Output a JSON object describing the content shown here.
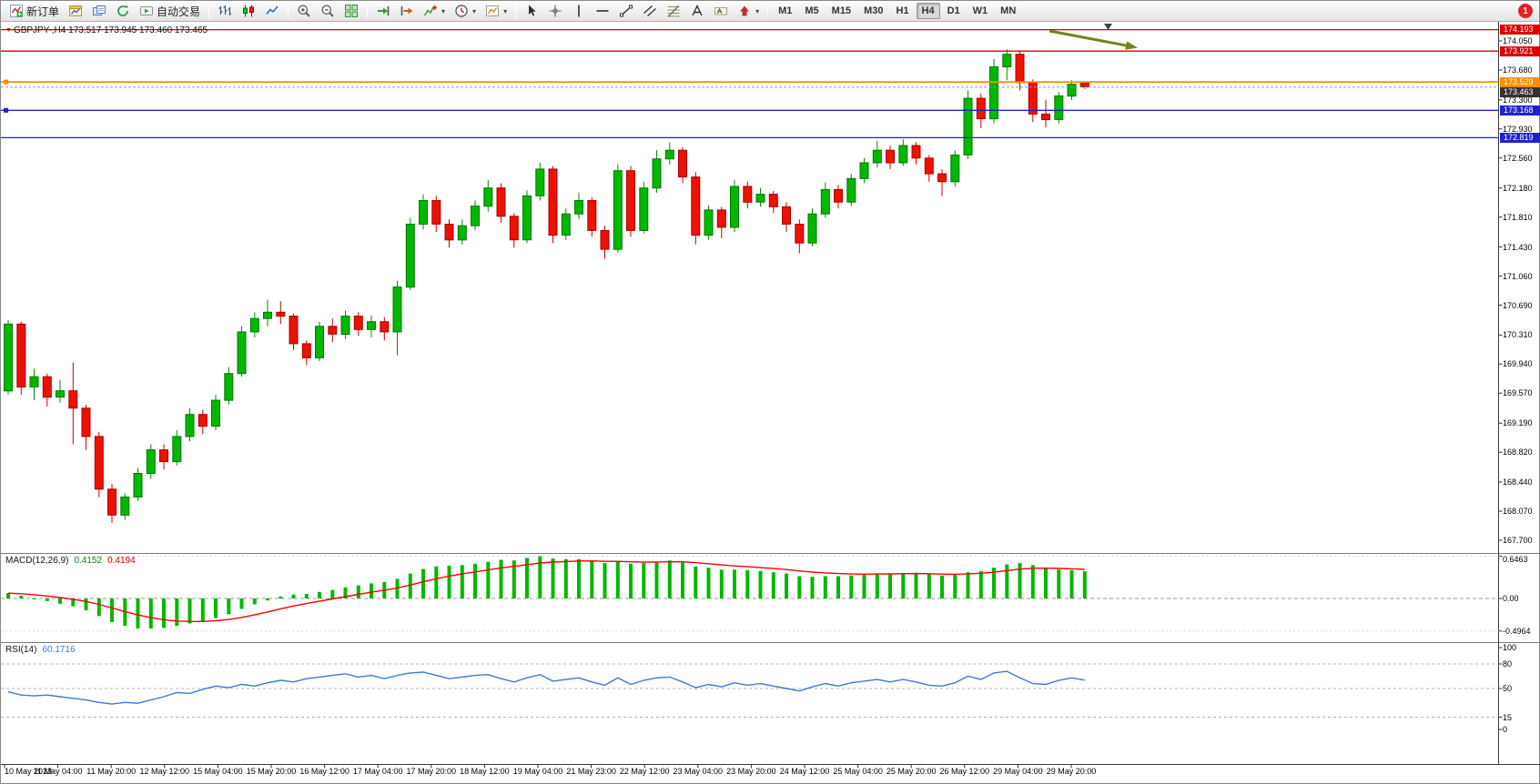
{
  "window": {
    "badge_count": "1"
  },
  "toolbar": {
    "caret_glyph": "▾",
    "active_timeframe": "H4",
    "items": [
      {
        "kind": "labelbtn",
        "name": "new-order-button",
        "icon": "new-order-icon",
        "label": "新订单"
      },
      {
        "kind": "icon",
        "name": "new-chart-button",
        "icon": "chart-window-icon"
      },
      {
        "kind": "icon",
        "name": "profiles-button",
        "icon": "profiles-icon"
      },
      {
        "kind": "icon",
        "name": "refresh-button",
        "icon": "refresh-icon"
      },
      {
        "kind": "labelbtn",
        "name": "auto-trading-button",
        "icon": "auto-trading-icon",
        "label": "自动交易"
      },
      {
        "kind": "sep"
      },
      {
        "kind": "icon",
        "name": "bar-chart-button",
        "icon": "bar-chart-icon"
      },
      {
        "kind": "icon",
        "name": "candlestick-chart-button",
        "icon": "candlestick-icon"
      },
      {
        "kind": "icon",
        "name": "line-chart-button",
        "icon": "line-chart-icon"
      },
      {
        "kind": "sep"
      },
      {
        "kind": "icon",
        "name": "zoom-in-button",
        "icon": "zoom-in-icon"
      },
      {
        "kind": "icon",
        "name": "zoom-out-button",
        "icon": "zoom-out-icon"
      },
      {
        "kind": "icon",
        "name": "tile-windows-button",
        "icon": "tile-windows-icon"
      },
      {
        "kind": "sep"
      },
      {
        "kind": "icon",
        "name": "auto-scroll-button",
        "icon": "auto-scroll-icon"
      },
      {
        "kind": "icon",
        "name": "chart-shift-button",
        "icon": "chart-shift-icon"
      },
      {
        "kind": "dropdown",
        "name": "indicators-button",
        "icon": "indicators-icon"
      },
      {
        "kind": "dropdown",
        "name": "periods-button",
        "icon": "periods-icon"
      },
      {
        "kind": "dropdown",
        "name": "templates-button",
        "icon": "templates-icon"
      },
      {
        "kind": "sep"
      },
      {
        "kind": "icon",
        "name": "cursor-button",
        "icon": "cursor-icon"
      },
      {
        "kind": "icon",
        "name": "crosshair-button",
        "icon": "crosshair-icon"
      },
      {
        "kind": "icon",
        "name": "vertical-line-button",
        "icon": "vertical-line-icon"
      },
      {
        "kind": "icon",
        "name": "horizontal-line-button",
        "icon": "horizontal-line-icon"
      },
      {
        "kind": "icon",
        "name": "trendline-button",
        "icon": "trendline-icon"
      },
      {
        "kind": "icon",
        "name": "equidistant-channel-button",
        "icon": "channel-icon"
      },
      {
        "kind": "icon",
        "name": "fibonacci-button",
        "icon": "fibonacci-icon"
      },
      {
        "kind": "icon",
        "name": "text-button",
        "icon": "text-icon"
      },
      {
        "kind": "icon",
        "name": "text-label-button",
        "icon": "text-label-icon"
      },
      {
        "kind": "dropdown",
        "name": "arrows-button",
        "icon": "arrows-icon"
      },
      {
        "kind": "sep"
      },
      {
        "kind": "tf",
        "label": "M1"
      },
      {
        "kind": "tf",
        "label": "M5"
      },
      {
        "kind": "tf",
        "label": "M15"
      },
      {
        "kind": "tf",
        "label": "M30"
      },
      {
        "kind": "tf",
        "label": "H1"
      },
      {
        "kind": "tf",
        "label": "H4"
      },
      {
        "kind": "tf",
        "label": "D1"
      },
      {
        "kind": "tf",
        "label": "W1"
      },
      {
        "kind": "tf",
        "label": "MN"
      }
    ]
  },
  "chart_data": {
    "type": "candlestick",
    "symbol": "GBPJPY-",
    "timeframe": "H4",
    "title": "GBPJPY-,H4",
    "direction_marker": "▼",
    "ohlc_display": "173.517 173.945 173.460 173.465",
    "up_color": "#00b800",
    "down_color": "#ee1100",
    "y_range": [
      167.544,
      174.293
    ],
    "y_axis_labels": [
      "174.050",
      "173.680",
      "173.300",
      "172.930",
      "172.560",
      "172.180",
      "171.810",
      "171.430",
      "171.060",
      "170.690",
      "170.310",
      "169.940",
      "169.570",
      "169.190",
      "168.820",
      "168.440",
      "168.070",
      "167.700"
    ],
    "x_labels": [
      "10 May 2023",
      "11 May 04:00",
      "11 May 20:00",
      "12 May 12:00",
      "15 May 04:00",
      "15 May 20:00",
      "16 May 12:00",
      "17 May 04:00",
      "17 May 20:00",
      "18 May 12:00",
      "19 May 04:00",
      "21 May 23:00",
      "22 May 12:00",
      "23 May 04:00",
      "23 May 20:00",
      "24 May 12:00",
      "25 May 04:00",
      "25 May 20:00",
      "26 May 12:00",
      "29 May 04:00",
      "29 May 20:00"
    ],
    "horizontal_lines": [
      {
        "price": 174.193,
        "label": "174.193",
        "color": "#dd0000"
      },
      {
        "price": 173.921,
        "label": "173.921",
        "color": "#dd0000"
      },
      {
        "price": 173.529,
        "label": "173.529",
        "color": "#ff8c00"
      },
      {
        "price": 173.168,
        "label": "173.168",
        "color": "#2222cc"
      },
      {
        "price": 172.819,
        "label": "172.819",
        "color": "#2222cc"
      }
    ],
    "bid": {
      "price": 173.463,
      "label": "173.463",
      "color": "#333333"
    },
    "annotation_arrow": {
      "color": "#70871c"
    },
    "candles": [
      [
        169.6,
        170.5,
        169.55,
        170.45
      ],
      [
        170.45,
        170.48,
        169.55,
        169.65
      ],
      [
        169.65,
        169.88,
        169.48,
        169.78
      ],
      [
        169.78,
        169.82,
        169.4,
        169.52
      ],
      [
        169.52,
        169.74,
        169.45,
        169.6
      ],
      [
        169.6,
        169.96,
        168.92,
        169.38
      ],
      [
        169.38,
        169.42,
        168.85,
        169.02
      ],
      [
        169.02,
        169.08,
        168.25,
        168.35
      ],
      [
        168.35,
        168.42,
        167.92,
        168.02
      ],
      [
        168.02,
        168.3,
        167.96,
        168.25
      ],
      [
        168.25,
        168.62,
        168.2,
        168.55
      ],
      [
        168.55,
        168.92,
        168.48,
        168.85
      ],
      [
        168.85,
        168.92,
        168.6,
        168.7
      ],
      [
        168.7,
        169.1,
        168.65,
        169.02
      ],
      [
        169.02,
        169.38,
        168.96,
        169.3
      ],
      [
        169.3,
        169.36,
        169.05,
        169.15
      ],
      [
        169.15,
        169.55,
        169.1,
        169.48
      ],
      [
        169.48,
        169.9,
        169.42,
        169.82
      ],
      [
        169.82,
        170.42,
        169.78,
        170.35
      ],
      [
        170.35,
        170.6,
        170.28,
        170.52
      ],
      [
        170.52,
        170.76,
        170.42,
        170.6
      ],
      [
        170.6,
        170.74,
        170.45,
        170.55
      ],
      [
        170.55,
        170.58,
        170.12,
        170.2
      ],
      [
        170.2,
        170.24,
        169.93,
        170.02
      ],
      [
        170.02,
        170.48,
        169.98,
        170.42
      ],
      [
        170.42,
        170.52,
        170.22,
        170.32
      ],
      [
        170.32,
        170.62,
        170.26,
        170.55
      ],
      [
        170.55,
        170.6,
        170.3,
        170.38
      ],
      [
        170.38,
        170.56,
        170.28,
        170.48
      ],
      [
        170.48,
        170.54,
        170.24,
        170.35
      ],
      [
        170.35,
        171.0,
        170.05,
        170.92
      ],
      [
        170.92,
        171.8,
        170.88,
        171.72
      ],
      [
        171.72,
        172.1,
        171.65,
        172.02
      ],
      [
        172.02,
        172.08,
        171.62,
        171.72
      ],
      [
        171.72,
        171.78,
        171.42,
        171.52
      ],
      [
        171.52,
        171.78,
        171.46,
        171.7
      ],
      [
        171.7,
        172.02,
        171.64,
        171.95
      ],
      [
        171.95,
        172.28,
        171.88,
        172.18
      ],
      [
        172.18,
        172.24,
        171.74,
        171.82
      ],
      [
        171.82,
        171.86,
        171.42,
        171.52
      ],
      [
        171.52,
        172.15,
        171.48,
        172.08
      ],
      [
        172.08,
        172.5,
        172.02,
        172.42
      ],
      [
        172.42,
        172.46,
        171.48,
        171.58
      ],
      [
        171.58,
        171.92,
        171.52,
        171.85
      ],
      [
        171.85,
        172.12,
        171.78,
        172.02
      ],
      [
        172.02,
        172.06,
        171.56,
        171.64
      ],
      [
        171.64,
        171.7,
        171.28,
        171.4
      ],
      [
        171.4,
        172.48,
        171.36,
        172.4
      ],
      [
        172.4,
        172.46,
        171.56,
        171.64
      ],
      [
        171.64,
        172.26,
        171.6,
        172.18
      ],
      [
        172.18,
        172.66,
        172.12,
        172.55
      ],
      [
        172.55,
        172.76,
        172.48,
        172.66
      ],
      [
        172.66,
        172.7,
        172.24,
        172.32
      ],
      [
        172.32,
        172.38,
        171.46,
        171.58
      ],
      [
        171.58,
        171.96,
        171.52,
        171.9
      ],
      [
        171.9,
        171.94,
        171.54,
        171.68
      ],
      [
        171.68,
        172.28,
        171.62,
        172.2
      ],
      [
        172.2,
        172.26,
        171.92,
        172.0
      ],
      [
        172.0,
        172.18,
        171.94,
        172.1
      ],
      [
        172.1,
        172.14,
        171.86,
        171.94
      ],
      [
        171.94,
        172.0,
        171.62,
        171.72
      ],
      [
        171.72,
        171.78,
        171.35,
        171.48
      ],
      [
        171.48,
        171.92,
        171.44,
        171.85
      ],
      [
        171.85,
        172.25,
        171.8,
        172.16
      ],
      [
        172.16,
        172.22,
        171.92,
        172.0
      ],
      [
        172.0,
        172.36,
        171.95,
        172.3
      ],
      [
        172.3,
        172.56,
        172.24,
        172.5
      ],
      [
        172.5,
        172.78,
        172.44,
        172.66
      ],
      [
        172.66,
        172.72,
        172.42,
        172.5
      ],
      [
        172.5,
        172.8,
        172.46,
        172.72
      ],
      [
        172.72,
        172.76,
        172.48,
        172.56
      ],
      [
        172.56,
        172.6,
        172.26,
        172.36
      ],
      [
        172.36,
        172.42,
        172.08,
        172.26
      ],
      [
        172.26,
        172.66,
        172.2,
        172.6
      ],
      [
        172.6,
        173.42,
        172.55,
        173.32
      ],
      [
        173.32,
        173.38,
        172.94,
        173.06
      ],
      [
        173.06,
        173.82,
        173.0,
        173.72
      ],
      [
        173.72,
        173.945,
        173.55,
        173.88
      ],
      [
        173.88,
        173.93,
        173.42,
        173.52
      ],
      [
        173.52,
        173.56,
        173.02,
        173.12
      ],
      [
        173.12,
        173.3,
        172.95,
        173.05
      ],
      [
        173.05,
        173.4,
        173.0,
        173.35
      ],
      [
        173.35,
        173.55,
        173.3,
        173.5
      ],
      [
        173.517,
        173.53,
        173.44,
        173.465
      ]
    ],
    "indicators": [
      {
        "name": "MACD",
        "display_name": "MACD(12,26,9)",
        "value_main": "0.4152",
        "value_signal": "0.4194",
        "axis_labels": [
          "0.6463",
          "0.00",
          "-0.4964"
        ],
        "range": [
          -0.4964,
          0.6463
        ],
        "histogram_color": "#00b800",
        "signal_color": "#ff0000",
        "values": [
          0.08,
          0.04,
          0.0,
          -0.04,
          -0.08,
          -0.12,
          -0.18,
          -0.27,
          -0.36,
          -0.42,
          -0.46,
          -0.46,
          -0.45,
          -0.42,
          -0.38,
          -0.35,
          -0.3,
          -0.24,
          -0.16,
          -0.09,
          -0.03,
          0.03,
          0.06,
          0.07,
          0.1,
          0.13,
          0.17,
          0.2,
          0.23,
          0.25,
          0.3,
          0.38,
          0.45,
          0.49,
          0.5,
          0.51,
          0.53,
          0.56,
          0.59,
          0.58,
          0.62,
          0.6463,
          0.61,
          0.6,
          0.6,
          0.58,
          0.54,
          0.57,
          0.53,
          0.54,
          0.56,
          0.58,
          0.55,
          0.49,
          0.47,
          0.44,
          0.44,
          0.43,
          0.42,
          0.4,
          0.38,
          0.34,
          0.33,
          0.34,
          0.34,
          0.35,
          0.36,
          0.38,
          0.38,
          0.39,
          0.39,
          0.37,
          0.35,
          0.36,
          0.4,
          0.42,
          0.47,
          0.52,
          0.54,
          0.51,
          0.47,
          0.44,
          0.43,
          0.4152
        ]
      },
      {
        "name": "RSI",
        "display_name": "RSI(14)",
        "value": "60.1716",
        "axis_labels": [
          "100",
          "80",
          "50",
          "15",
          "0"
        ],
        "levels": [
          80,
          50,
          15
        ],
        "range": [
          0,
          100
        ],
        "line_color": "#3e7ad6",
        "values": [
          46,
          42,
          41,
          42,
          40,
          38,
          36,
          33,
          31,
          33,
          32,
          36,
          40,
          45,
          44,
          49,
          53,
          51,
          55,
          53,
          57,
          60,
          58,
          62,
          64,
          66,
          68,
          64,
          66,
          62,
          66,
          69,
          70,
          66,
          62,
          64,
          66,
          67,
          62,
          58,
          63,
          67,
          59,
          61,
          63,
          58,
          54,
          63,
          55,
          60,
          63,
          64,
          58,
          51,
          55,
          52,
          57,
          54,
          56,
          53,
          50,
          47,
          52,
          56,
          53,
          57,
          59,
          61,
          58,
          61,
          58,
          54,
          53,
          57,
          65,
          61,
          69,
          71,
          63,
          56,
          55,
          60,
          63,
          60.17
        ]
      }
    ]
  }
}
